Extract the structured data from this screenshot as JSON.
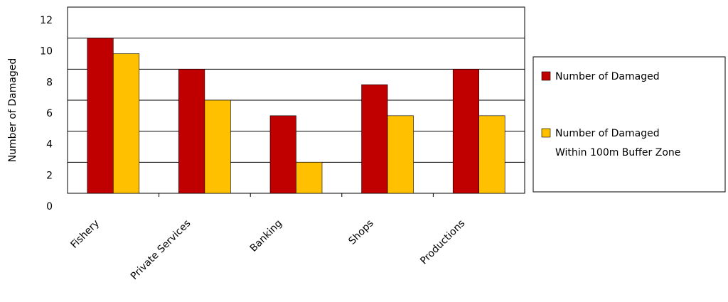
{
  "chart_data": {
    "type": "bar",
    "y_label": "Number of Damaged",
    "categories": [
      "Fishery",
      "Private Services",
      "Banking",
      "Shops",
      "Productions"
    ],
    "series": [
      {
        "name": "Number of Damaged",
        "color": "#c00000",
        "values": [
          10,
          8,
          5,
          7,
          8
        ]
      },
      {
        "name": "Number of Damaged Within 100m Buffer Zone",
        "color": "#ffc000",
        "values": [
          9,
          6,
          2,
          5,
          5
        ]
      }
    ],
    "ylim": [
      0,
      12
    ],
    "yticks": [
      0,
      2,
      4,
      6,
      8,
      10,
      12
    ],
    "grid": true,
    "legend": "right"
  }
}
